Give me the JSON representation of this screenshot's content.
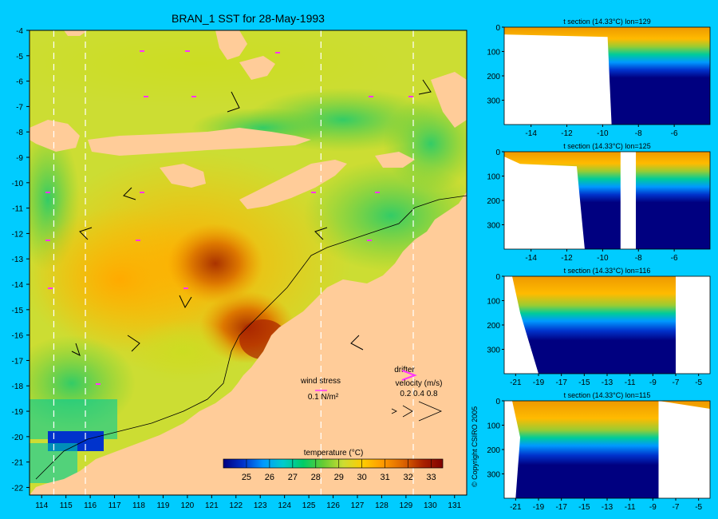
{
  "colors": {
    "background": "#00ccff",
    "land": "#ffcc99",
    "deep": "#000080"
  },
  "map": {
    "title": "BRAN_1 SST for 28-May-1993",
    "lon_ticks": [
      114,
      115,
      116,
      117,
      118,
      119,
      120,
      121,
      122,
      123,
      124,
      125,
      126,
      127,
      128,
      129,
      130,
      131
    ],
    "lat_ticks": [
      -4,
      -5,
      -6,
      -7,
      -8,
      -9,
      -10,
      -11,
      -12,
      -13,
      -14,
      -15,
      -16,
      -17,
      -18,
      -19,
      -20,
      -21,
      -22
    ],
    "section_lines_lon": [
      114.5,
      115.8,
      125.5,
      129.3
    ],
    "colorbar": {
      "title": "temperature (°C)",
      "ticks": [
        25,
        26,
        27,
        28,
        29,
        30,
        31,
        32,
        33
      ],
      "range": [
        24,
        33.5
      ],
      "stops": [
        "#000080",
        "#0033cc",
        "#0099ff",
        "#00cccc",
        "#00cc66",
        "#66cc33",
        "#ccdd33",
        "#ffcc00",
        "#ff9900",
        "#dd6600",
        "#aa2200",
        "#800000"
      ]
    },
    "wind_stress_label": "wind stress",
    "wind_stress_scale": "0.1 N/m²",
    "drifter_label": "drifter",
    "velocity_label": "velocity (m/s)",
    "velocity_scale": "0.2 0.4 0.8"
  },
  "chart_data": [
    {
      "type": "heatmap",
      "title": "t section (14.33°C) lon=129",
      "x_ticks": [
        "-14",
        "-12",
        "-10",
        "-8",
        "-6"
      ],
      "y_ticks": [
        "0",
        "100",
        "200",
        "300"
      ],
      "xlim": [
        -15.5,
        -4
      ],
      "ylim": [
        400,
        0
      ],
      "land_boundary_lat": -9.5
    },
    {
      "type": "heatmap",
      "title": "t section (14.33°C) lon=125",
      "x_ticks": [
        "-14",
        "-12",
        "-10",
        "-8",
        "-6"
      ],
      "y_ticks": [
        "0",
        "100",
        "200",
        "300"
      ],
      "xlim": [
        -15.5,
        -4
      ],
      "ylim": [
        400,
        0
      ],
      "land_boundary_lat": -11
    },
    {
      "type": "heatmap",
      "title": "t section (14.33°C) lon=116",
      "x_ticks": [
        "-21",
        "-19",
        "-17",
        "-15",
        "-13",
        "-11",
        "-9",
        "-7",
        "-5"
      ],
      "y_ticks": [
        "0",
        "100",
        "200",
        "300"
      ],
      "xlim": [
        -22,
        -4
      ],
      "ylim": [
        400,
        0
      ],
      "land_boundary_lat": -19
    },
    {
      "type": "heatmap",
      "title": "t section (14.33°C) lon=115",
      "x_ticks": [
        "-21",
        "-19",
        "-17",
        "-15",
        "-13",
        "-11",
        "-9",
        "-7",
        "-5"
      ],
      "y_ticks": [
        "0",
        "100",
        "200",
        "300"
      ],
      "xlim": [
        -22,
        -4
      ],
      "ylim": [
        400,
        0
      ],
      "land_boundary_lat": -21
    }
  ],
  "copyright": "© Copyright CSIRO 2005"
}
